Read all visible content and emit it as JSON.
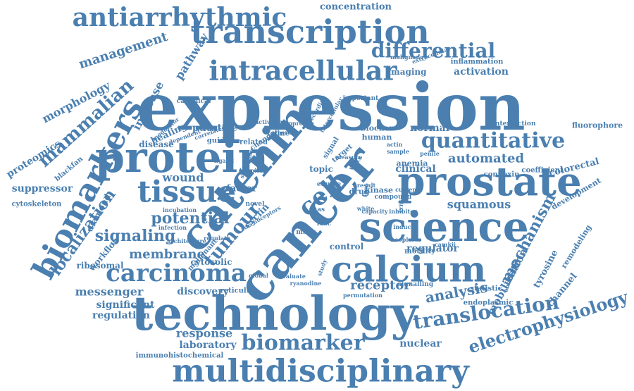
{
  "style": {
    "word_color": "#4a7fb0",
    "background": "#ffffff"
  },
  "words": [
    {
      "text": "expression",
      "weight": 100
    },
    {
      "text": "technology",
      "weight": 86
    },
    {
      "text": "science",
      "weight": 80
    },
    {
      "text": "cancer",
      "weight": 80
    },
    {
      "text": "catenin",
      "weight": 76
    },
    {
      "text": "prostate",
      "weight": 68
    },
    {
      "text": "protein",
      "weight": 68
    },
    {
      "text": "multidisciplinary",
      "weight": 66
    },
    {
      "text": "calcium",
      "weight": 62
    },
    {
      "text": "biomarkers",
      "weight": 60
    },
    {
      "text": "transcription",
      "weight": 60
    },
    {
      "text": "tissue",
      "weight": 58
    },
    {
      "text": "intracellular",
      "weight": 55
    },
    {
      "text": "antiarrhythmic",
      "weight": 52
    },
    {
      "text": "quantitative",
      "weight": 48
    },
    {
      "text": "carcinoma",
      "weight": 44
    },
    {
      "text": "biomarker",
      "weight": 42
    },
    {
      "text": "differential",
      "weight": 40
    },
    {
      "text": "translocation",
      "weight": 38
    },
    {
      "text": "mammalian",
      "weight": 36
    },
    {
      "text": "electrophysiology",
      "weight": 34
    },
    {
      "text": "tumour",
      "weight": 34
    },
    {
      "text": "localization",
      "weight": 32
    },
    {
      "text": "mechanism",
      "weight": 30
    },
    {
      "text": "signaling",
      "weight": 30
    },
    {
      "text": "cell",
      "weight": 30
    },
    {
      "text": "potential",
      "weight": 28
    },
    {
      "text": "analysis",
      "weight": 26
    },
    {
      "text": "receptor",
      "weight": 24
    },
    {
      "text": "management",
      "weight": 24
    },
    {
      "text": "membrane",
      "weight": 22
    },
    {
      "text": "increase",
      "weight": 22
    },
    {
      "text": "pathway",
      "weight": 22
    },
    {
      "text": "morphology",
      "weight": 22
    },
    {
      "text": "automated",
      "weight": 22
    },
    {
      "text": "squamous",
      "weight": 22
    },
    {
      "text": "messenger",
      "weight": 20
    },
    {
      "text": "response",
      "weight": 20
    },
    {
      "text": "laboratory",
      "weight": 20
    },
    {
      "text": "regulation",
      "weight": 20
    },
    {
      "text": "significant",
      "weight": 20
    },
    {
      "text": "suppressor",
      "weight": 18
    },
    {
      "text": "proteomics",
      "weight": 18
    },
    {
      "text": "wound",
      "weight": 18
    },
    {
      "text": "discovery",
      "weight": 18
    },
    {
      "text": "activation",
      "weight": 18
    },
    {
      "text": "mobilization",
      "weight": 16
    },
    {
      "text": "nuclear",
      "weight": 16
    },
    {
      "text": "regulator",
      "weight": 16
    },
    {
      "text": "putative",
      "weight": 16
    },
    {
      "text": "clinical",
      "weight": 16
    },
    {
      "text": "normal",
      "weight": 16
    },
    {
      "text": "channel",
      "weight": 16
    },
    {
      "text": "colorectal",
      "weight": 16
    },
    {
      "text": "tyrosine",
      "weight": 16
    },
    {
      "text": "concentration",
      "weight": 14
    },
    {
      "text": "healing",
      "weight": 14
    },
    {
      "text": "disease",
      "weight": 14
    },
    {
      "text": "imaging",
      "weight": 14
    },
    {
      "text": "cytosolic",
      "weight": 14
    },
    {
      "text": "ribosomal",
      "weight": 14
    },
    {
      "text": "diamond",
      "weight": 14
    },
    {
      "text": "workflow",
      "weight": 14
    },
    {
      "text": "remodeling",
      "weight": 14
    },
    {
      "text": "development",
      "weight": 14
    },
    {
      "text": "cyclin",
      "weight": 14
    },
    {
      "text": "factor",
      "weight": 14
    },
    {
      "text": "control",
      "weight": 14
    },
    {
      "text": "topic",
      "weight": 14
    },
    {
      "text": "anemia",
      "weight": 12
    },
    {
      "text": "kinase",
      "weight": 12
    },
    {
      "text": "human",
      "weight": 12
    },
    {
      "text": "blocker",
      "weight": 12
    },
    {
      "text": "drug",
      "weight": 12
    },
    {
      "text": "fluorophore",
      "weight": 12
    },
    {
      "text": "inflammation",
      "weight": 12
    },
    {
      "text": "cytoskeleton",
      "weight": 12
    },
    {
      "text": "endoplasmic",
      "weight": 12
    },
    {
      "text": "immunohistochemical",
      "weight": 12
    },
    {
      "text": "reticulum",
      "weight": 12
    },
    {
      "text": "statistic",
      "weight": 12
    },
    {
      "text": "motility",
      "weight": 12
    },
    {
      "text": "connexin",
      "weight": 12
    },
    {
      "text": "coefficient",
      "weight": 12
    },
    {
      "text": "guided",
      "weight": 12
    },
    {
      "text": "change",
      "weight": 12
    },
    {
      "text": "related",
      "weight": 12
    },
    {
      "text": "feline",
      "weight": 12
    },
    {
      "text": "malignant",
      "weight": 12
    },
    {
      "text": "signal",
      "weight": 12
    },
    {
      "text": "target",
      "weight": 12
    },
    {
      "text": "blackfan",
      "weight": 12
    },
    {
      "text": "canonical",
      "weight": 10
    },
    {
      "text": "intersection",
      "weight": 10
    },
    {
      "text": "important",
      "weight": 10
    },
    {
      "text": "signalling",
      "weight": 10
    },
    {
      "text": "evaluate",
      "weight": 10
    },
    {
      "text": "ryanodine",
      "weight": 10
    },
    {
      "text": "permutation",
      "weight": 10
    },
    {
      "text": "camkii",
      "weight": 10
    },
    {
      "text": "novel",
      "weight": 10
    },
    {
      "text": "many",
      "weight": 10
    },
    {
      "text": "infection",
      "weight": 9
    },
    {
      "text": "architecture",
      "weight": 9
    },
    {
      "text": "regulate",
      "weight": 9
    },
    {
      "text": "incubation",
      "weight": 9
    },
    {
      "text": "modulator",
      "weight": 9
    },
    {
      "text": "dependent",
      "weight": 9
    },
    {
      "text": "correlated",
      "weight": 9
    },
    {
      "text": "activator",
      "weight": 9
    },
    {
      "text": "approach",
      "weight": 9
    },
    {
      "text": "whereas",
      "weight": 9
    },
    {
      "text": "malignancy",
      "weight": 9
    },
    {
      "text": "extracellular",
      "weight": 9
    },
    {
      "text": "induced",
      "weight": 9
    },
    {
      "text": "neoplasm",
      "weight": 9
    },
    {
      "text": "inhibitor",
      "weight": 9
    },
    {
      "text": "critical",
      "weight": 9
    },
    {
      "text": "current",
      "weight": 9
    },
    {
      "text": "result",
      "weight": 9
    },
    {
      "text": "actin",
      "weight": 9
    },
    {
      "text": "sample",
      "weight": 9
    },
    {
      "text": "penile",
      "weight": 9
    },
    {
      "text": "antibodies",
      "weight": 9
    },
    {
      "text": "adrenoceptors",
      "weight": 9
    },
    {
      "text": "global",
      "weight": 9
    },
    {
      "text": "recording",
      "weight": 9
    },
    {
      "text": "intercellular",
      "weight": 9
    },
    {
      "text": "compound",
      "weight": 9
    },
    {
      "text": "fosc",
      "weight": 9
    },
    {
      "text": "rnas",
      "weight": 9
    },
    {
      "text": "wnts",
      "weight": 9
    },
    {
      "text": "free",
      "weight": 9
    },
    {
      "text": "equine",
      "weight": 9
    },
    {
      "text": "study",
      "weight": 9
    },
    {
      "text": "ligand",
      "weight": 9
    },
    {
      "text": "screening",
      "weight": 9
    },
    {
      "text": "hospital",
      "weight": 9
    },
    {
      "text": "capacity",
      "weight": 9
    },
    {
      "text": "measure",
      "weight": 9
    },
    {
      "text": "white",
      "weight": 9
    },
    {
      "text": "effect",
      "weight": 9
    },
    {
      "text": "action",
      "weight": 9
    }
  ]
}
